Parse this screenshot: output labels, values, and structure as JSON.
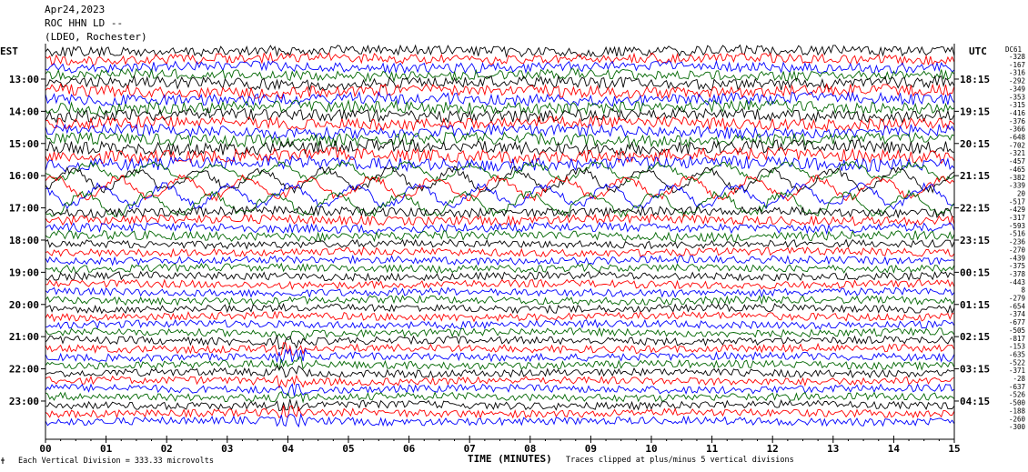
{
  "header": {
    "date": "Apr24,2023",
    "station": "ROC HHN LD --",
    "network": "(LDEO, Rochester)"
  },
  "labels": {
    "left_zone": "EST",
    "right_zone": "UTC",
    "offset_header": "DC61"
  },
  "footer": {
    "scale_icon": "scale-icon",
    "scale_text": "Each Vertical Division =  333.33 microvolts",
    "xlabel": "TIME (MINUTES)",
    "clip_text": "Traces clipped at plus/minus 5 vertical divisions"
  },
  "colors": {
    "trace_cycle": [
      "#000000",
      "#ff0000",
      "#0000ff",
      "#006600"
    ],
    "grid": "#000000",
    "background": "#ffffff"
  },
  "chart_data": {
    "type": "line",
    "title": "Apr24,2023 ROC HHN LD -- (LDEO, Rochester)",
    "xlabel": "TIME (MINUTES)",
    "ylabel": "",
    "xlim": [
      0,
      15
    ],
    "x_ticks": [
      "00",
      "01",
      "02",
      "03",
      "04",
      "05",
      "06",
      "07",
      "08",
      "09",
      "10",
      "11",
      "12",
      "13",
      "14",
      "15"
    ],
    "left_hour_labels": [
      "13:00",
      "14:00",
      "15:00",
      "16:00",
      "17:00",
      "18:00",
      "19:00",
      "20:00",
      "21:00",
      "22:00",
      "23:00"
    ],
    "right_hour_labels": [
      "18:15",
      "19:15",
      "20:15",
      "21:15",
      "22:15",
      "23:15",
      "00:15",
      "01:15",
      "02:15",
      "03:15",
      "04:15"
    ],
    "traces_per_hour": 4,
    "trace_minutes": 15,
    "trace_offsets": [
      "-328",
      "-167",
      "-316",
      "-292",
      "-349",
      "-353",
      "-315",
      "-416",
      "-376",
      "-366",
      "-648",
      "-702",
      "-321",
      "-457",
      "-465",
      "-382",
      "-339",
      "20",
      "-517",
      "-429",
      "-317",
      "-593",
      "-516",
      "-236",
      "-270",
      "-439",
      "-375",
      "-378",
      "-443",
      "8",
      "-279",
      "-654",
      "-374",
      "-677",
      "-505",
      "-817",
      "-153",
      "-635",
      "-522",
      "-371",
      "-28",
      "-637",
      "-526",
      "-500",
      "-188",
      "-260",
      "-300"
    ],
    "scale_microvolts_per_division": 333.33,
    "clip_divisions": 5,
    "grid": true
  }
}
